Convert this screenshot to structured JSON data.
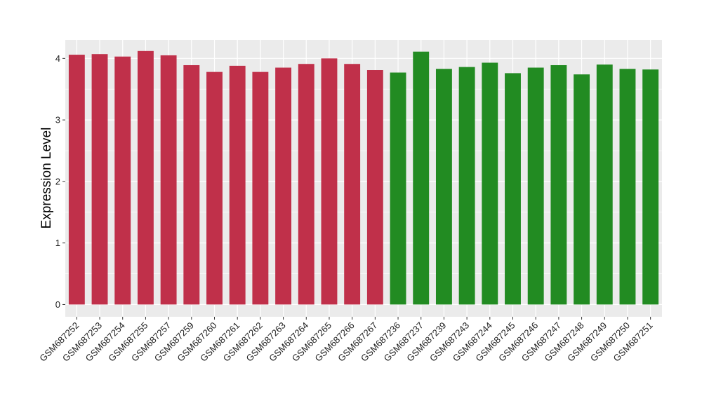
{
  "chart_data": {
    "type": "bar",
    "ylabel": "Expression Level",
    "xlabel": "",
    "ylim": [
      -0.2,
      4.3
    ],
    "yticks": [
      0,
      1,
      2,
      3,
      4
    ],
    "ytick_labels": [
      "0",
      "1",
      "2",
      "3",
      "4"
    ],
    "grid": true,
    "legend": "none",
    "categories": [
      "GSM687252",
      "GSM687253",
      "GSM687254",
      "GSM687255",
      "GSM687257",
      "GSM687259",
      "GSM687260",
      "GSM687261",
      "GSM687262",
      "GSM687263",
      "GSM687264",
      "GSM687265",
      "GSM687266",
      "GSM687267",
      "GSM687236",
      "GSM687237",
      "GSM687239",
      "GSM687243",
      "GSM687244",
      "GSM687245",
      "GSM687246",
      "GSM687247",
      "GSM687248",
      "GSM687249",
      "GSM687250",
      "GSM687251"
    ],
    "values": [
      4.06,
      4.07,
      4.03,
      4.12,
      4.05,
      3.89,
      3.78,
      3.88,
      3.78,
      3.85,
      3.91,
      4.0,
      3.91,
      3.81,
      3.77,
      4.11,
      3.83,
      3.86,
      3.93,
      3.76,
      3.85,
      3.89,
      3.74,
      3.9,
      3.83,
      3.82
    ],
    "bar_colors": [
      "#c0304a",
      "#c0304a",
      "#c0304a",
      "#c0304a",
      "#c0304a",
      "#c0304a",
      "#c0304a",
      "#c0304a",
      "#c0304a",
      "#c0304a",
      "#c0304a",
      "#c0304a",
      "#c0304a",
      "#c0304a",
      "#228b22",
      "#228b22",
      "#228b22",
      "#228b22",
      "#228b22",
      "#228b22",
      "#228b22",
      "#228b22",
      "#228b22",
      "#228b22",
      "#228b22",
      "#228b22"
    ],
    "panel_background": "#ebebeb",
    "grid_color": "#ffffff"
  }
}
